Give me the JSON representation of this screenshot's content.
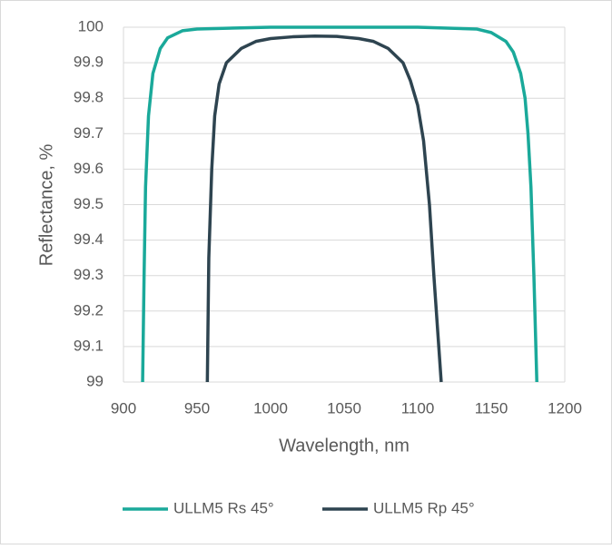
{
  "chart_data": {
    "type": "line",
    "x_label": "Wavelength, nm",
    "y_label": "Reflectance, %",
    "xlim": [
      900,
      1200
    ],
    "xticks": [
      900,
      950,
      1000,
      1050,
      1100,
      1150,
      1200
    ],
    "ylim": [
      99,
      100
    ],
    "yticks": [
      99,
      99.1,
      99.2,
      99.3,
      99.4,
      99.5,
      99.6,
      99.7,
      99.8,
      99.9,
      100
    ],
    "grid": true,
    "legend": "bottom",
    "series": [
      {
        "name": "ULLM5 Rs 45°",
        "color": "#1aa99a",
        "x": [
          913,
          914,
          915,
          917,
          920,
          925,
          930,
          940,
          950,
          1000,
          1050,
          1100,
          1140,
          1150,
          1160,
          1165,
          1170,
          1173,
          1175,
          1177,
          1179,
          1181
        ],
        "values": [
          99.0,
          99.3,
          99.55,
          99.75,
          99.87,
          99.94,
          99.97,
          99.99,
          99.995,
          100,
          100,
          100,
          99.995,
          99.985,
          99.96,
          99.93,
          99.87,
          99.8,
          99.7,
          99.55,
          99.3,
          99.0
        ]
      },
      {
        "name": "ULLM5 Rp 45°",
        "color": "#2e4450",
        "x": [
          957,
          958,
          960,
          962,
          965,
          970,
          980,
          990,
          1000,
          1015,
          1030,
          1045,
          1060,
          1070,
          1080,
          1090,
          1095,
          1100,
          1104,
          1108,
          1111,
          1114,
          1116
        ],
        "values": [
          99.0,
          99.35,
          99.6,
          99.75,
          99.84,
          99.9,
          99.94,
          99.96,
          99.968,
          99.973,
          99.975,
          99.974,
          99.968,
          99.96,
          99.94,
          99.9,
          99.85,
          99.78,
          99.68,
          99.5,
          99.3,
          99.12,
          99.0
        ]
      }
    ]
  }
}
